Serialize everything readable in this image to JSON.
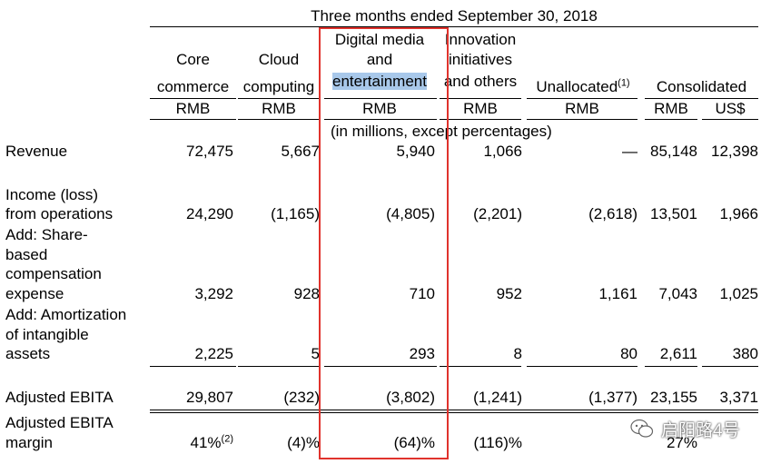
{
  "period": "Three months ended September 30, 2018",
  "units_note": "(in millions, except percentages)",
  "columns": [
    {
      "l1": "",
      "l2": "Core",
      "l3": "commerce",
      "cur": "RMB"
    },
    {
      "l1": "",
      "l2": "Cloud",
      "l3": "computing",
      "cur": "RMB"
    },
    {
      "l1": "Digital media",
      "l2": "and",
      "l3": "entertainment",
      "cur": "RMB"
    },
    {
      "l1": "Innovation",
      "l2": "initiatives",
      "l3": "and others",
      "cur": "RMB"
    },
    {
      "l1": "",
      "l2": "",
      "l3": "Unallocated",
      "l3_sup": "(1)",
      "cur": "RMB"
    },
    {
      "l1": "",
      "l2": "",
      "l3": "Consolidated",
      "cur": "RMB",
      "cur2": "US$"
    }
  ],
  "rows": {
    "revenue": {
      "label": [
        "Revenue"
      ],
      "values": [
        "72,475",
        "5,667",
        "5,940",
        "1,066",
        "—",
        "85,148",
        "12,398"
      ]
    },
    "income": {
      "label": [
        "Income (loss)",
        "from operations"
      ],
      "values": [
        "24,290",
        "(1,165)",
        "(4,805)",
        "(2,201)",
        "(2,618)",
        "13,501",
        "1,966"
      ]
    },
    "sbc": {
      "label": [
        "Add: Share-",
        "based",
        "compensation",
        "expense"
      ],
      "values": [
        "3,292",
        "928",
        "710",
        "952",
        "1,161",
        "7,043",
        "1,025"
      ]
    },
    "amort": {
      "label": [
        "Add: Amortization",
        "of intangible",
        "assets"
      ],
      "values": [
        "2,225",
        "5",
        "293",
        "8",
        "80",
        "2,611",
        "380"
      ]
    },
    "ebita": {
      "label": [
        "Adjusted EBITA"
      ],
      "values": [
        "29,807",
        "(232)",
        "(3,802)",
        "(1,241)",
        "(1,377)",
        "23,155",
        "3,371"
      ]
    },
    "margin": {
      "label": [
        "Adjusted EBITA",
        "margin"
      ],
      "values": [
        "41%",
        "(4)%",
        "(64)%",
        "(116)%",
        "27%"
      ],
      "first_sup": "(2)"
    }
  },
  "watermark": "启阳路4号",
  "colors": {
    "highlight": "#a8c8ea",
    "box": "#e0332d"
  },
  "icons": {
    "watermark": "wechat-logo-icon"
  }
}
